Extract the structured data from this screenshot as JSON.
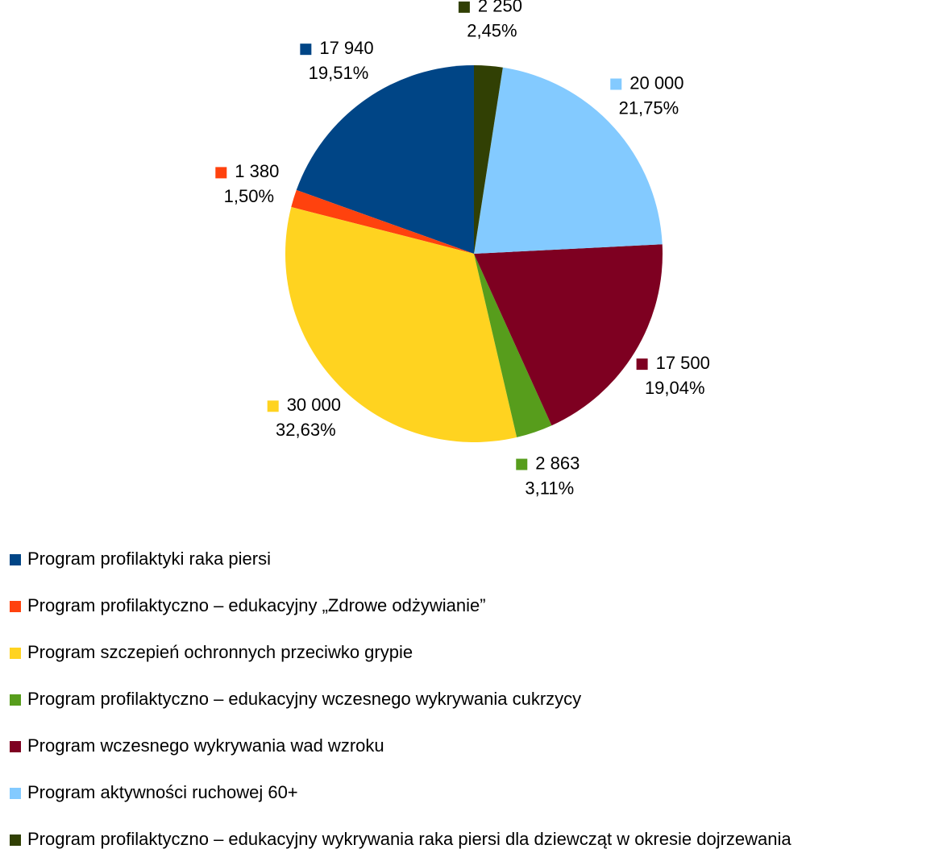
{
  "chart_data": {
    "type": "pie",
    "categories": [
      "Program profilaktyki raka piersi",
      "Program profilaktyczno – edukacyjny  „Zdrowe odżywianie”",
      "Program szczepień ochronnych przeciwko grypie",
      "Program profilaktyczno – edukacyjny wczesnego wykrywania cukrzycy",
      "Program wczesnego wykrywania wad wzroku",
      "Program aktywności ruchowej 60+",
      "Program profilaktyczno – edukacyjny wykrywania raka piersi dla dziewcząt w okresie dojrzewania"
    ],
    "values": [
      17940,
      1380,
      30000,
      2863,
      17500,
      20000,
      2250
    ],
    "value_labels": [
      "17 940",
      "1 380",
      "30 000",
      "2 863",
      "17 500",
      "20 000",
      "2 250"
    ],
    "percent_labels": [
      "19,51%",
      "1,50%",
      "32,63%",
      "3,11%",
      "19,04%",
      "21,75%",
      "2,45%"
    ],
    "colors": [
      "#004586",
      "#ff420e",
      "#ffd320",
      "#579d1c",
      "#7e0021",
      "#83caff",
      "#314004"
    ],
    "direction": "counterclockwise",
    "start_angle": 0
  }
}
